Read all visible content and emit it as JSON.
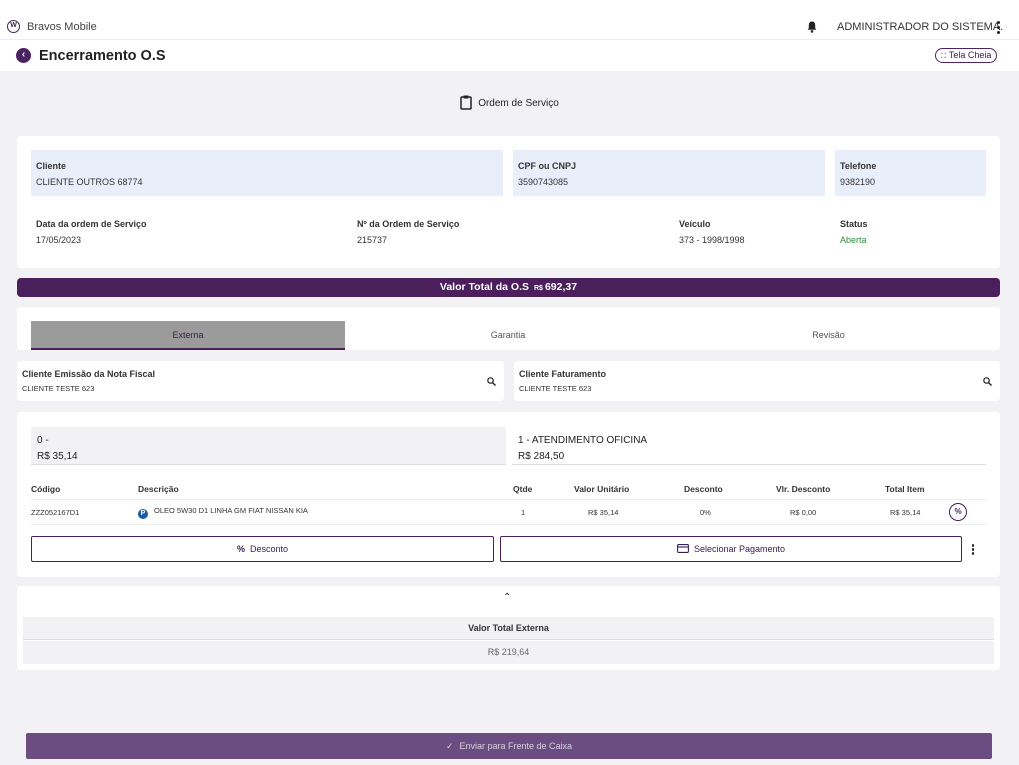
{
  "topbar": {
    "logo_icon": "vw-logo-icon",
    "app_name": "Bravos Mobile",
    "user_name": "ADMINISTRADOR DO SISTEMA."
  },
  "header": {
    "title": "Encerramento O.S",
    "fullscreen_label": "Tela Cheia"
  },
  "section": {
    "title": "Ordem de Serviço"
  },
  "order_info": {
    "cliente_label": "Cliente",
    "cliente_value": "CLIENTE OUTROS 68774",
    "cpf_label": "CPF ou CNPJ",
    "cpf_value": "3590743085",
    "telefone_label": "Telefone",
    "telefone_value": "9382190",
    "data_label": "Data da ordem de Serviço",
    "data_value": "17/05/2023",
    "numero_label": "Nº da Ordem de Serviço",
    "numero_value": "215737",
    "veiculo_label": "Veículo",
    "veiculo_value": "373 - 1998/1998",
    "status_label": "Status",
    "status_value": "Aberta",
    "status_color": "#2e8b3e"
  },
  "total_bar": {
    "label": "Valor Total da O.S",
    "currency": "R$",
    "value": "692,37",
    "color": "#4a1f5c"
  },
  "tabs": [
    {
      "label": "Externa",
      "active": true
    },
    {
      "label": "Garantia",
      "active": false
    },
    {
      "label": "Revisão",
      "active": false
    }
  ],
  "billing": {
    "emissao_label": "Cliente Emissão da Nota Fiscal",
    "emissao_value": "CLIENTE TESTE 623",
    "faturamento_label": "Cliente Faturamento",
    "faturamento_value": "CLIENTE TESTE 623"
  },
  "summaries": [
    {
      "line1": "0 -",
      "line2": "R$ 35,14"
    },
    {
      "line1": "1 - ATENDIMENTO OFICINA",
      "line2": "R$ 284,50"
    }
  ],
  "table": {
    "headers": [
      "Código",
      "Descrição",
      "Qtde",
      "Valor Unitário",
      "Desconto",
      "Vlr. Desconto",
      "Total Item"
    ],
    "rows": [
      {
        "codigo": "ZZZ052167D1",
        "badge": "P",
        "descricao": "OLEO 5W30 D1 LINHA GM FIAT NISSAN KIA",
        "qtde": "1",
        "valor_unitario": "R$ 35,14",
        "desconto": "0%",
        "vlr_desconto": "R$ 0,00",
        "total_item": "R$ 35,14"
      }
    ]
  },
  "actions": {
    "desconto_label": "Desconto",
    "pagamento_label": "Selecionar Pagamento"
  },
  "external_total": {
    "label": "Valor Total Externa",
    "value": "R$ 219,64"
  },
  "footer": {
    "send_label": "Enviar para Frente de Caixa"
  }
}
